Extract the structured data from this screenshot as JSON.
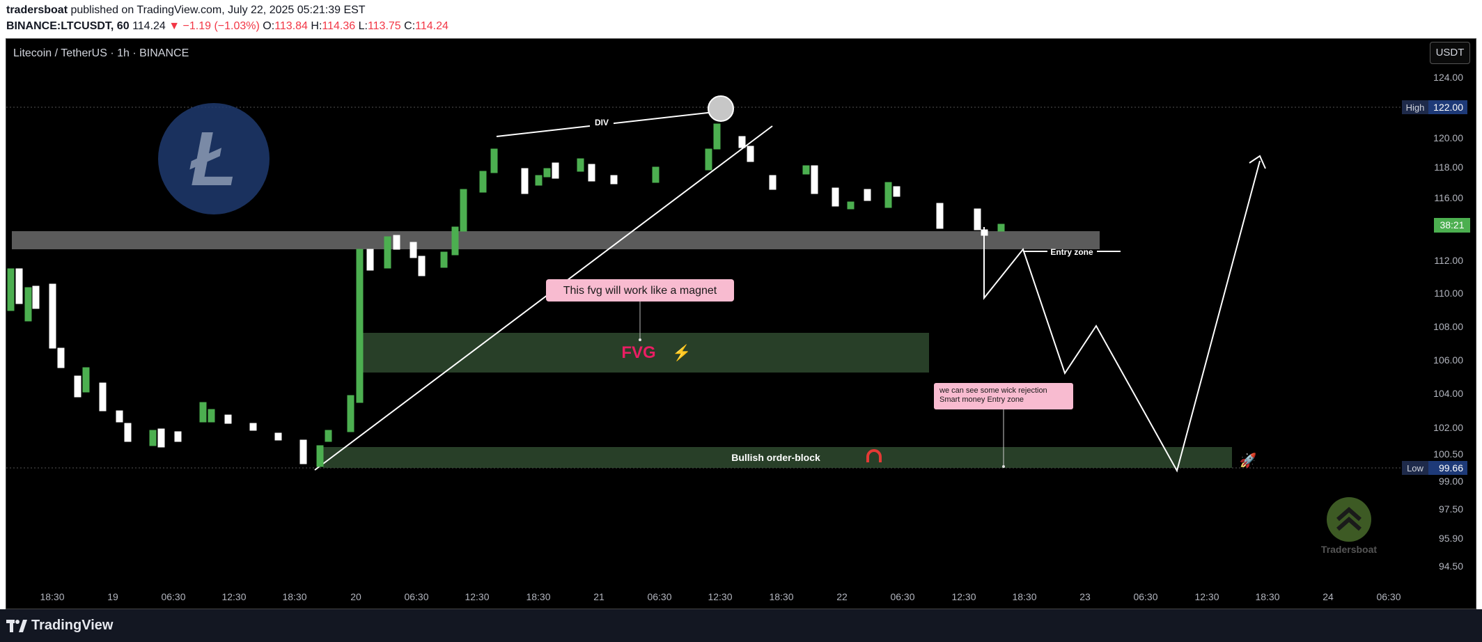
{
  "header": {
    "publisher": "tradersboat",
    "published_text": "published on TradingView.com, July 22, 2025 05:21:39 EST",
    "symbol": "BINANCE:LTCUSDT, 60",
    "last": "114.24",
    "change": "▼ −1.19 (−1.03%)",
    "o_label": "O:",
    "o_value": "113.84",
    "h_label": "H:",
    "h_value": "114.36",
    "l_label": "L:",
    "l_value": "113.75",
    "c_label": "C:",
    "c_value": "114.24"
  },
  "chart": {
    "title": "Litecoin / TetherUS · 1h · BINANCE",
    "currency_button": "USDT",
    "price_ticks": [
      "124.00",
      "122.00",
      "120.00",
      "118.00",
      "116.00",
      "112.00",
      "110.00",
      "108.00",
      "106.00",
      "104.00",
      "102.00",
      "100.50",
      "99.00",
      "97.50",
      "95.90",
      "94.50"
    ],
    "time_ticks": [
      "18:30",
      "19",
      "06:30",
      "12:30",
      "18:30",
      "20",
      "06:30",
      "12:30",
      "18:30",
      "21",
      "06:30",
      "12:30",
      "18:30",
      "22",
      "06:30",
      "12:30",
      "18:30",
      "23",
      "06:30",
      "12:30",
      "18:30",
      "24",
      "06:30"
    ],
    "high_label": "High",
    "high_value": "122.00",
    "low_label": "Low",
    "low_value": "99.66",
    "countdown": "38:21",
    "annotations": {
      "div": "DIV",
      "entry_zone": "Entry zone",
      "magnet_note": "This fvg will work like a magnet",
      "fvg": "FVG",
      "wick_note_1": "we can see some wick rejection",
      "wick_note_2": "Smart money Entry zone",
      "order_block": "Bullish order-block",
      "watermark": "Tradersboat"
    },
    "colors": {
      "up": "#4caf50",
      "down": "#ffffff",
      "note_bg": "#f8bbd0",
      "fvg_text": "#e91e63"
    }
  },
  "footer": {
    "brand": "TradingView"
  }
}
